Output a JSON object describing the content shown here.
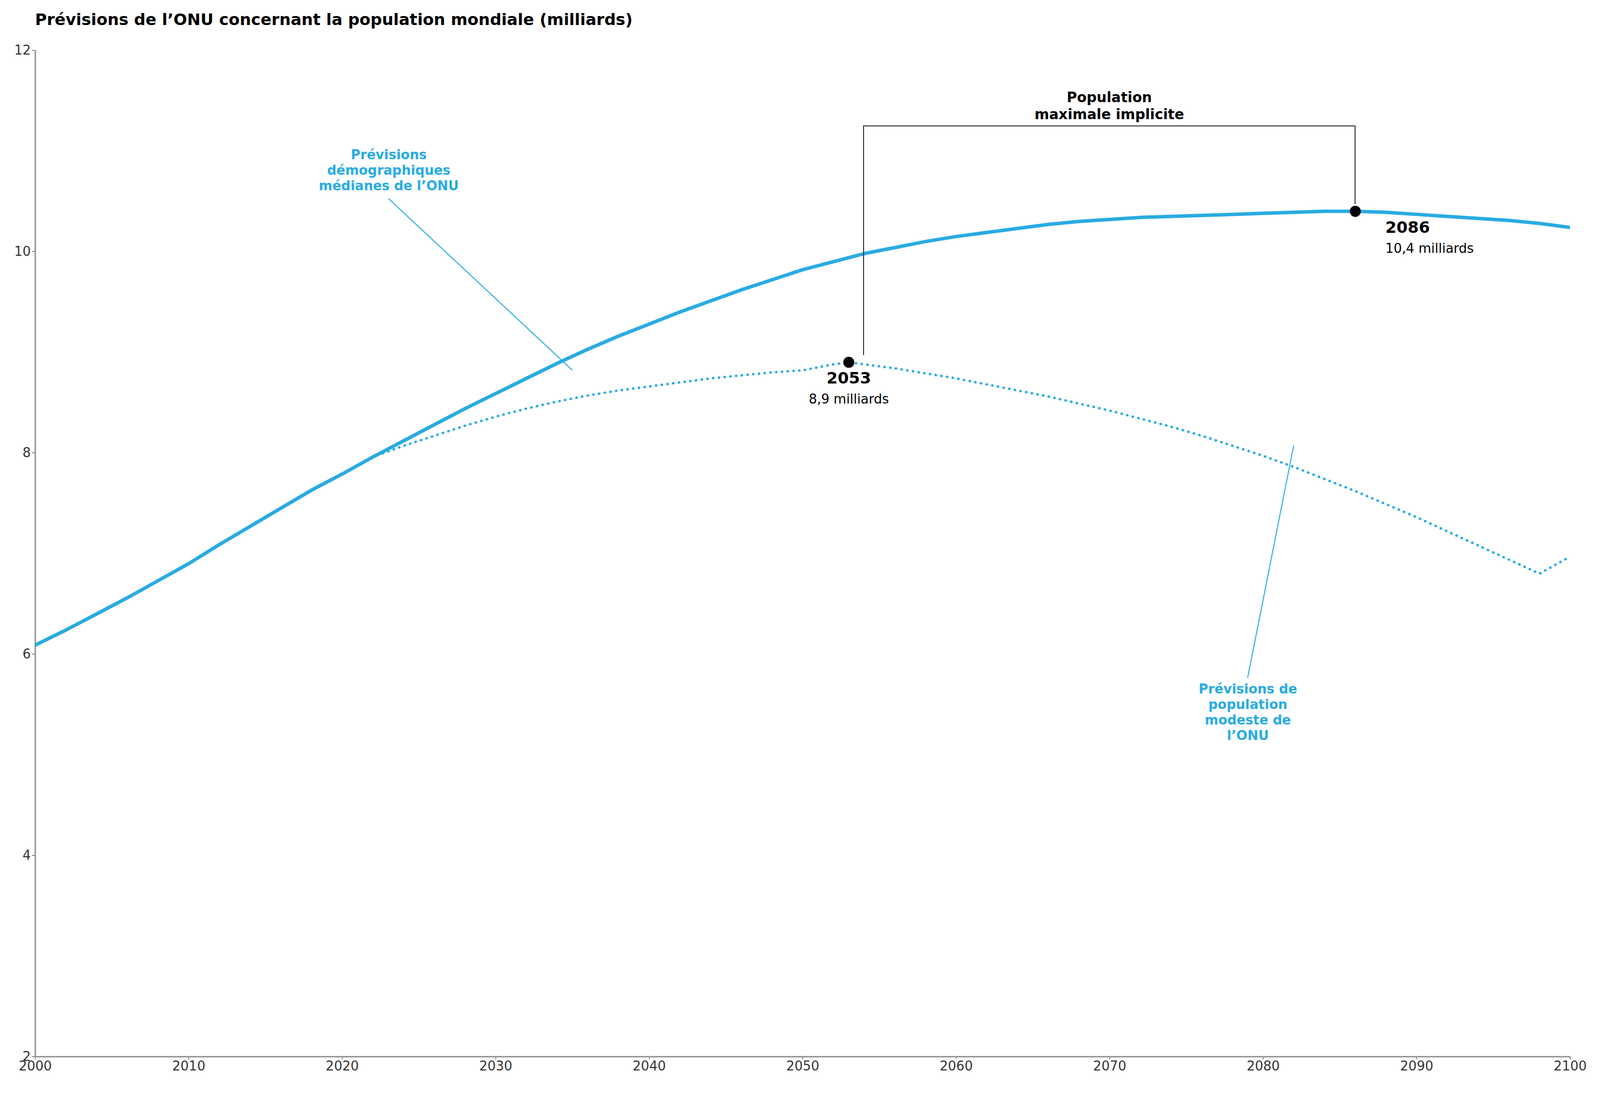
{
  "chart_data": {
    "type": "line",
    "title": "Prévisions de l’ONU concernant la population mondiale (milliards)",
    "xlim": [
      2000,
      2100
    ],
    "ylim": [
      2,
      12
    ],
    "xticks": [
      2000,
      2010,
      2020,
      2030,
      2040,
      2050,
      2060,
      2070,
      2080,
      2090,
      2100
    ],
    "yticks": [
      2,
      4,
      6,
      8,
      10,
      12
    ],
    "grid": false,
    "series": [
      {
        "color": "#29ABE2",
        "line_style": "solid",
        "x": [
          2000,
          2002,
          2004,
          2006,
          2008,
          2010,
          2012,
          2014,
          2016,
          2018,
          2020,
          2022,
          2024,
          2026,
          2028,
          2030,
          2032,
          2034,
          2036,
          2038,
          2040,
          2042,
          2044,
          2046,
          2048,
          2050,
          2052,
          2054,
          2056,
          2058,
          2060,
          2062,
          2064,
          2066,
          2068,
          2070,
          2072,
          2074,
          2076,
          2078,
          2080,
          2082,
          2084,
          2086,
          2088,
          2090,
          2092,
          2094,
          2096,
          2098,
          2100
        ],
        "values": [
          6.09,
          6.24,
          6.4,
          6.56,
          6.73,
          6.9,
          7.09,
          7.27,
          7.45,
          7.63,
          7.79,
          7.96,
          8.12,
          8.28,
          8.44,
          8.59,
          8.74,
          8.89,
          9.03,
          9.16,
          9.28,
          9.4,
          9.51,
          9.62,
          9.72,
          9.82,
          9.9,
          9.98,
          10.04,
          10.1,
          10.15,
          10.19,
          10.23,
          10.27,
          10.3,
          10.32,
          10.34,
          10.35,
          10.36,
          10.37,
          10.38,
          10.39,
          10.4,
          10.4,
          10.39,
          10.37,
          10.35,
          10.33,
          10.31,
          10.28,
          10.24
        ]
      },
      {
        "color": "#29ABE2",
        "line_style": "dotted",
        "x": [
          2000,
          2002,
          2004,
          2006,
          2008,
          2010,
          2012,
          2014,
          2016,
          2018,
          2020,
          2022,
          2024,
          2026,
          2028,
          2030,
          2032,
          2034,
          2036,
          2038,
          2040,
          2042,
          2044,
          2046,
          2048,
          2050,
          2052,
          2053,
          2054,
          2056,
          2058,
          2060,
          2062,
          2064,
          2066,
          2068,
          2070,
          2072,
          2074,
          2076,
          2078,
          2080,
          2082,
          2084,
          2086,
          2088,
          2090,
          2092,
          2094,
          2096,
          2098,
          2100
        ],
        "values": [
          6.09,
          6.24,
          6.4,
          6.56,
          6.73,
          6.9,
          7.09,
          7.27,
          7.45,
          7.63,
          7.79,
          7.96,
          8.07,
          8.17,
          8.27,
          8.36,
          8.44,
          8.51,
          8.57,
          8.62,
          8.66,
          8.7,
          8.74,
          8.77,
          8.8,
          8.82,
          8.88,
          8.9,
          8.88,
          8.84,
          8.79,
          8.74,
          8.68,
          8.62,
          8.56,
          8.49,
          8.42,
          8.34,
          8.26,
          8.17,
          8.07,
          7.97,
          7.86,
          7.74,
          7.62,
          7.49,
          7.36,
          7.22,
          7.08,
          6.94,
          6.8,
          6.97
        ]
      }
    ],
    "annotations": [
      {
        "text": "Prévisions\ndémographiques\nmédianes de l’ONU",
        "x": 2035,
        "y": 8.82
      },
      {
        "text": "Prévisions de\npopulation\nmodeste de\nl’ONU",
        "x": 2082,
        "y": 8.07
      }
    ],
    "peaks": {
      "label": "Population\nmaximale implicite",
      "points": [
        {
          "x": 2053,
          "y": 8.9,
          "labels": [
            "2053",
            "8,9 milliards"
          ]
        },
        {
          "x": 2086,
          "y": 10.4,
          "labels": [
            "2086",
            "10,4 milliards"
          ]
        }
      ]
    }
  }
}
